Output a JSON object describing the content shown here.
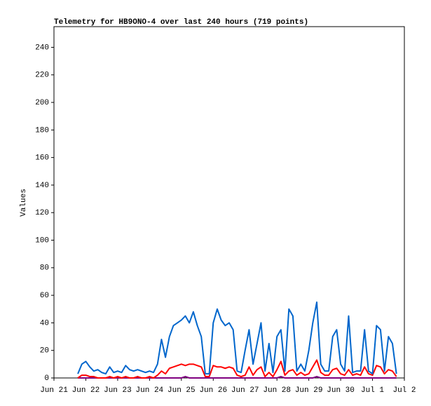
{
  "chart_data": {
    "type": "line",
    "title": "Telemetry for HB9ONO-4 over last 240 hours (719 points)",
    "y_label": "Values",
    "x": [
      0.75,
      0.875,
      1,
      1.125,
      1.25,
      1.375,
      1.5,
      1.625,
      1.75,
      1.875,
      2,
      2.125,
      2.25,
      2.375,
      2.5,
      2.625,
      2.75,
      2.875,
      3,
      3.125,
      3.25,
      3.375,
      3.5,
      3.625,
      3.75,
      3.875,
      4,
      4.125,
      4.25,
      4.375,
      4.5,
      4.625,
      4.75,
      4.875,
      5,
      5.125,
      5.25,
      5.375,
      5.5,
      5.625,
      5.75,
      5.875,
      6,
      6.125,
      6.25,
      6.375,
      6.5,
      6.625,
      6.75,
      6.875,
      7,
      7.125,
      7.25,
      7.375,
      7.5,
      7.625,
      7.75,
      7.875,
      8,
      8.125,
      8.25,
      8.375,
      8.5,
      8.625,
      8.75,
      8.875,
      9,
      9.125,
      9.25,
      9.375,
      9.5,
      9.625,
      9.75,
      9.875,
      10,
      10.125,
      10.25,
      10.375,
      10.5,
      10.625,
      10.75
    ],
    "series": [
      {
        "color": "#0066cc",
        "values": [
          3,
          10,
          12,
          8,
          5,
          6,
          4,
          3,
          8,
          4,
          5,
          4,
          9,
          6,
          5,
          6,
          5,
          4,
          5,
          4,
          10,
          28,
          15,
          30,
          38,
          40,
          42,
          45,
          40,
          48,
          38,
          30,
          3,
          3,
          40,
          50,
          42,
          38,
          40,
          35,
          5,
          4,
          20,
          35,
          10,
          25,
          40,
          5,
          25,
          4,
          30,
          35,
          5,
          50,
          45,
          5,
          10,
          5,
          20,
          40,
          55,
          10,
          5,
          5,
          30,
          35,
          10,
          5,
          45,
          4,
          5,
          5,
          35,
          5,
          3,
          38,
          35,
          5,
          30,
          25,
          3
        ]
      },
      {
        "color": "#ff0000",
        "values": [
          0,
          2,
          2,
          1,
          1,
          0,
          0,
          0,
          1,
          0,
          1,
          0,
          1,
          0,
          0,
          1,
          0,
          0,
          1,
          0,
          2,
          5,
          3,
          7,
          8,
          9,
          10,
          9,
          10,
          10,
          9,
          8,
          1,
          1,
          9,
          8,
          8,
          7,
          8,
          7,
          2,
          1,
          2,
          8,
          2,
          6,
          8,
          1,
          4,
          1,
          6,
          12,
          2,
          5,
          6,
          2,
          4,
          2,
          3,
          8,
          13,
          4,
          2,
          2,
          6,
          7,
          3,
          2,
          6,
          2,
          3,
          2,
          8,
          3,
          2,
          9,
          8,
          3,
          6,
          5,
          1
        ]
      },
      {
        "color": "#800080",
        "values": [
          0,
          0,
          0,
          0,
          0,
          0,
          0,
          0,
          0,
          0,
          0,
          0,
          0,
          0,
          0,
          0,
          0,
          0,
          0,
          0,
          0,
          0,
          0,
          0,
          0,
          0,
          0,
          1,
          0,
          0,
          0,
          0,
          0,
          0,
          0,
          0,
          0,
          0,
          0,
          0,
          0,
          0,
          0,
          0,
          0,
          0,
          0,
          0,
          0,
          0,
          0,
          1,
          0,
          0,
          0,
          0,
          0,
          0,
          0,
          0,
          1,
          0,
          0,
          0,
          0,
          0,
          0,
          0,
          0,
          0,
          0,
          0,
          0,
          0,
          0,
          0,
          0,
          0,
          0,
          0,
          0
        ]
      }
    ],
    "xlim": [
      0,
      11
    ],
    "xticks": [
      {
        "value": 0,
        "label": "Jun 21"
      },
      {
        "value": 1,
        "label": "Jun 22"
      },
      {
        "value": 2,
        "label": "Jun 23"
      },
      {
        "value": 3,
        "label": "Jun 24"
      },
      {
        "value": 4,
        "label": "Jun 25"
      },
      {
        "value": 5,
        "label": "Jun 26"
      },
      {
        "value": 6,
        "label": "Jun 27"
      },
      {
        "value": 7,
        "label": "Jun 28"
      },
      {
        "value": 8,
        "label": "Jun 29"
      },
      {
        "value": 9,
        "label": "Jun 30"
      },
      {
        "value": 10,
        "label": "Jul 1"
      },
      {
        "value": 11,
        "label": "Jul 2"
      }
    ],
    "ylim": [
      0,
      255
    ],
    "yticks": [
      0,
      20,
      40,
      60,
      80,
      100,
      120,
      140,
      160,
      180,
      200,
      220,
      240
    ]
  }
}
